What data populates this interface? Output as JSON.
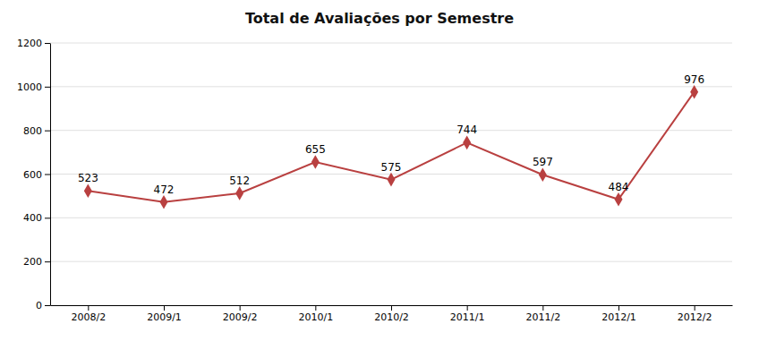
{
  "chart_data": {
    "type": "line",
    "title": "Total de Avaliações por Semestre",
    "categories": [
      "2008/2",
      "2009/1",
      "2009/2",
      "2010/1",
      "2010/2",
      "2011/1",
      "2011/2",
      "2012/1",
      "2012/2"
    ],
    "values": [
      523,
      472,
      512,
      655,
      575,
      744,
      597,
      484,
      976
    ],
    "color": "#b94040",
    "marker": "diamond",
    "ylim": [
      0,
      1200
    ],
    "yticks": [
      0,
      200,
      400,
      600,
      800,
      1000,
      1200
    ],
    "grid": true,
    "data_labels": true
  }
}
